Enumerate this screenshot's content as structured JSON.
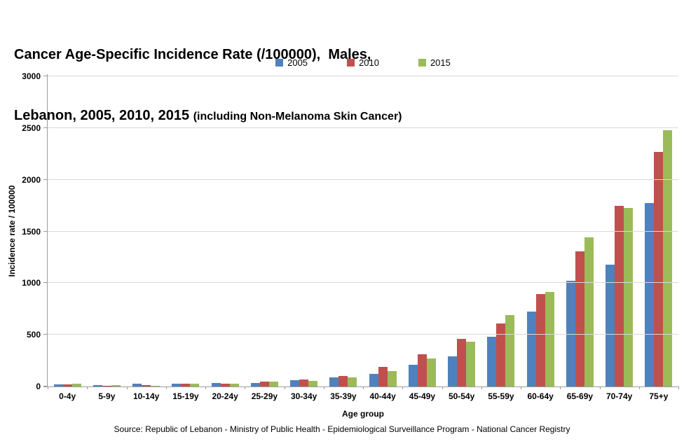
{
  "title": {
    "line1": "Cancer Age-Specific Incidence Rate (/100000),  Males,",
    "line2_main": "Lebanon, 2005, 2010, 2015 ",
    "line2_paren": "(including Non-Melanoma Skin Cancer)"
  },
  "source": "Source: Republic of Lebanon - Ministry of Public Health - Epidemiological Surveillance Program - National Cancer Registry",
  "chart_data": {
    "type": "bar",
    "title": "Cancer Age-Specific Incidence Rate (/100000), Males, Lebanon, 2005, 2010, 2015 (including Non-Melanoma Skin Cancer)",
    "xlabel": "Age group",
    "ylabel": "Incidence  rate / 100000",
    "ylim": [
      0,
      3000
    ],
    "yticks": [
      0,
      500,
      1000,
      1500,
      2000,
      2500,
      3000
    ],
    "grid": true,
    "legend_position": "top-center",
    "categories": [
      "0-4y",
      "5-9y",
      "10-14y",
      "15-19y",
      "20-24y",
      "25-29y",
      "30-34y",
      "35-39y",
      "40-44y",
      "45-49y",
      "50-54y",
      "55-59y",
      "60-64y",
      "65-69y",
      "70-74y",
      "75+y"
    ],
    "series": [
      {
        "name": "2005",
        "color": "#4F81BD",
        "values": [
          20,
          15,
          25,
          25,
          35,
          35,
          60,
          85,
          120,
          210,
          290,
          480,
          725,
          1020,
          1180,
          1775
        ]
      },
      {
        "name": "2010",
        "color": "#C0504D",
        "values": [
          18,
          10,
          12,
          30,
          30,
          45,
          65,
          105,
          190,
          315,
          460,
          610,
          895,
          1310,
          1750,
          2270
        ]
      },
      {
        "name": "2015",
        "color": "#9BBB59",
        "values": [
          25,
          15,
          10,
          25,
          30,
          50,
          55,
          85,
          150,
          270,
          435,
          690,
          915,
          1440,
          1730,
          2480
        ]
      }
    ],
    "colors": {
      "axis": "#9C9C9C",
      "gridline": "#D9D9D9",
      "text": "#000000"
    }
  }
}
